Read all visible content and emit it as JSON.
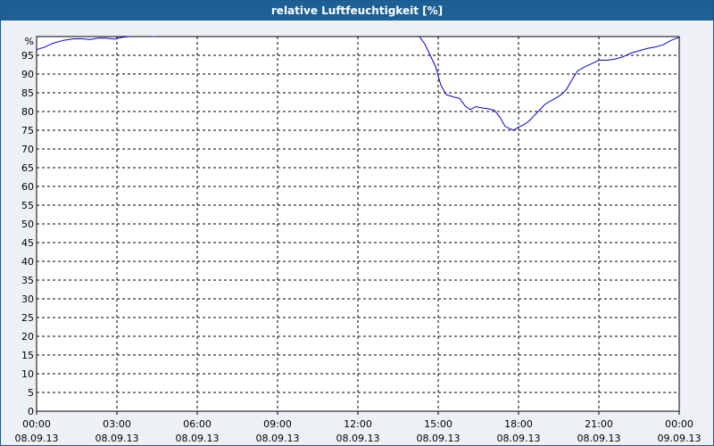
{
  "chart_data": {
    "type": "line",
    "title": "relative Luftfeuchtigkeit [%]",
    "y_unit_label": "%",
    "ylim": [
      0,
      100
    ],
    "y_ticks": [
      0,
      5,
      10,
      15,
      20,
      25,
      30,
      35,
      40,
      45,
      50,
      55,
      60,
      65,
      70,
      75,
      80,
      85,
      90,
      95
    ],
    "xlim": [
      0,
      24
    ],
    "x_ticks": [
      {
        "hour": 0,
        "time": "00:00",
        "date": "08.09.13"
      },
      {
        "hour": 3,
        "time": "03:00",
        "date": "08.09.13"
      },
      {
        "hour": 6,
        "time": "06:00",
        "date": "08.09.13"
      },
      {
        "hour": 9,
        "time": "09:00",
        "date": "08.09.13"
      },
      {
        "hour": 12,
        "time": "12:00",
        "date": "08.09.13"
      },
      {
        "hour": 15,
        "time": "15:00",
        "date": "08.09.13"
      },
      {
        "hour": 18,
        "time": "18:00",
        "date": "08.09.13"
      },
      {
        "hour": 21,
        "time": "21:00",
        "date": "08.09.13"
      },
      {
        "hour": 24,
        "time": "00:00",
        "date": "09.09.13"
      }
    ],
    "grid": true,
    "line_color": "#0000cc",
    "series": [
      {
        "segments": [
          [
            [
              0.0,
              96.5
            ],
            [
              0.3,
              97.2
            ],
            [
              0.6,
              98.2
            ],
            [
              1.0,
              99.0
            ],
            [
              1.4,
              99.4
            ],
            [
              1.7,
              99.4
            ],
            [
              2.0,
              99.2
            ],
            [
              2.3,
              99.6
            ],
            [
              2.6,
              99.6
            ],
            [
              2.9,
              99.3
            ],
            [
              3.2,
              99.8
            ],
            [
              3.5,
              100.0
            ]
          ],
          [
            [
              4.3,
              100.0
            ],
            [
              4.45,
              100.0
            ]
          ],
          [
            [
              14.3,
              100.0
            ],
            [
              14.5,
              98.0
            ],
            [
              14.7,
              95.0
            ],
            [
              14.9,
              92.0
            ],
            [
              15.1,
              87.0
            ],
            [
              15.3,
              84.5
            ],
            [
              15.6,
              83.8
            ],
            [
              15.8,
              83.5
            ],
            [
              16.0,
              81.5
            ],
            [
              16.2,
              80.5
            ],
            [
              16.4,
              81.3
            ],
            [
              16.6,
              81.0
            ],
            [
              16.9,
              80.7
            ],
            [
              17.1,
              80.3
            ],
            [
              17.3,
              78.5
            ],
            [
              17.5,
              76.0
            ],
            [
              17.8,
              75.0
            ],
            [
              18.0,
              75.8
            ],
            [
              18.2,
              76.5
            ],
            [
              18.4,
              77.5
            ],
            [
              18.6,
              79.0
            ],
            [
              18.8,
              80.5
            ],
            [
              19.0,
              82.0
            ],
            [
              19.3,
              83.2
            ],
            [
              19.6,
              84.5
            ],
            [
              19.8,
              86.0
            ],
            [
              20.0,
              88.5
            ],
            [
              20.2,
              90.8
            ],
            [
              20.5,
              92.0
            ],
            [
              20.8,
              93.0
            ],
            [
              21.0,
              93.7
            ],
            [
              21.3,
              93.7
            ],
            [
              21.6,
              94.0
            ],
            [
              21.9,
              94.6
            ],
            [
              22.2,
              95.6
            ],
            [
              22.5,
              96.2
            ],
            [
              22.8,
              96.8
            ],
            [
              23.1,
              97.2
            ],
            [
              23.4,
              97.8
            ],
            [
              23.7,
              99.0
            ],
            [
              24.0,
              99.8
            ]
          ]
        ]
      }
    ]
  }
}
